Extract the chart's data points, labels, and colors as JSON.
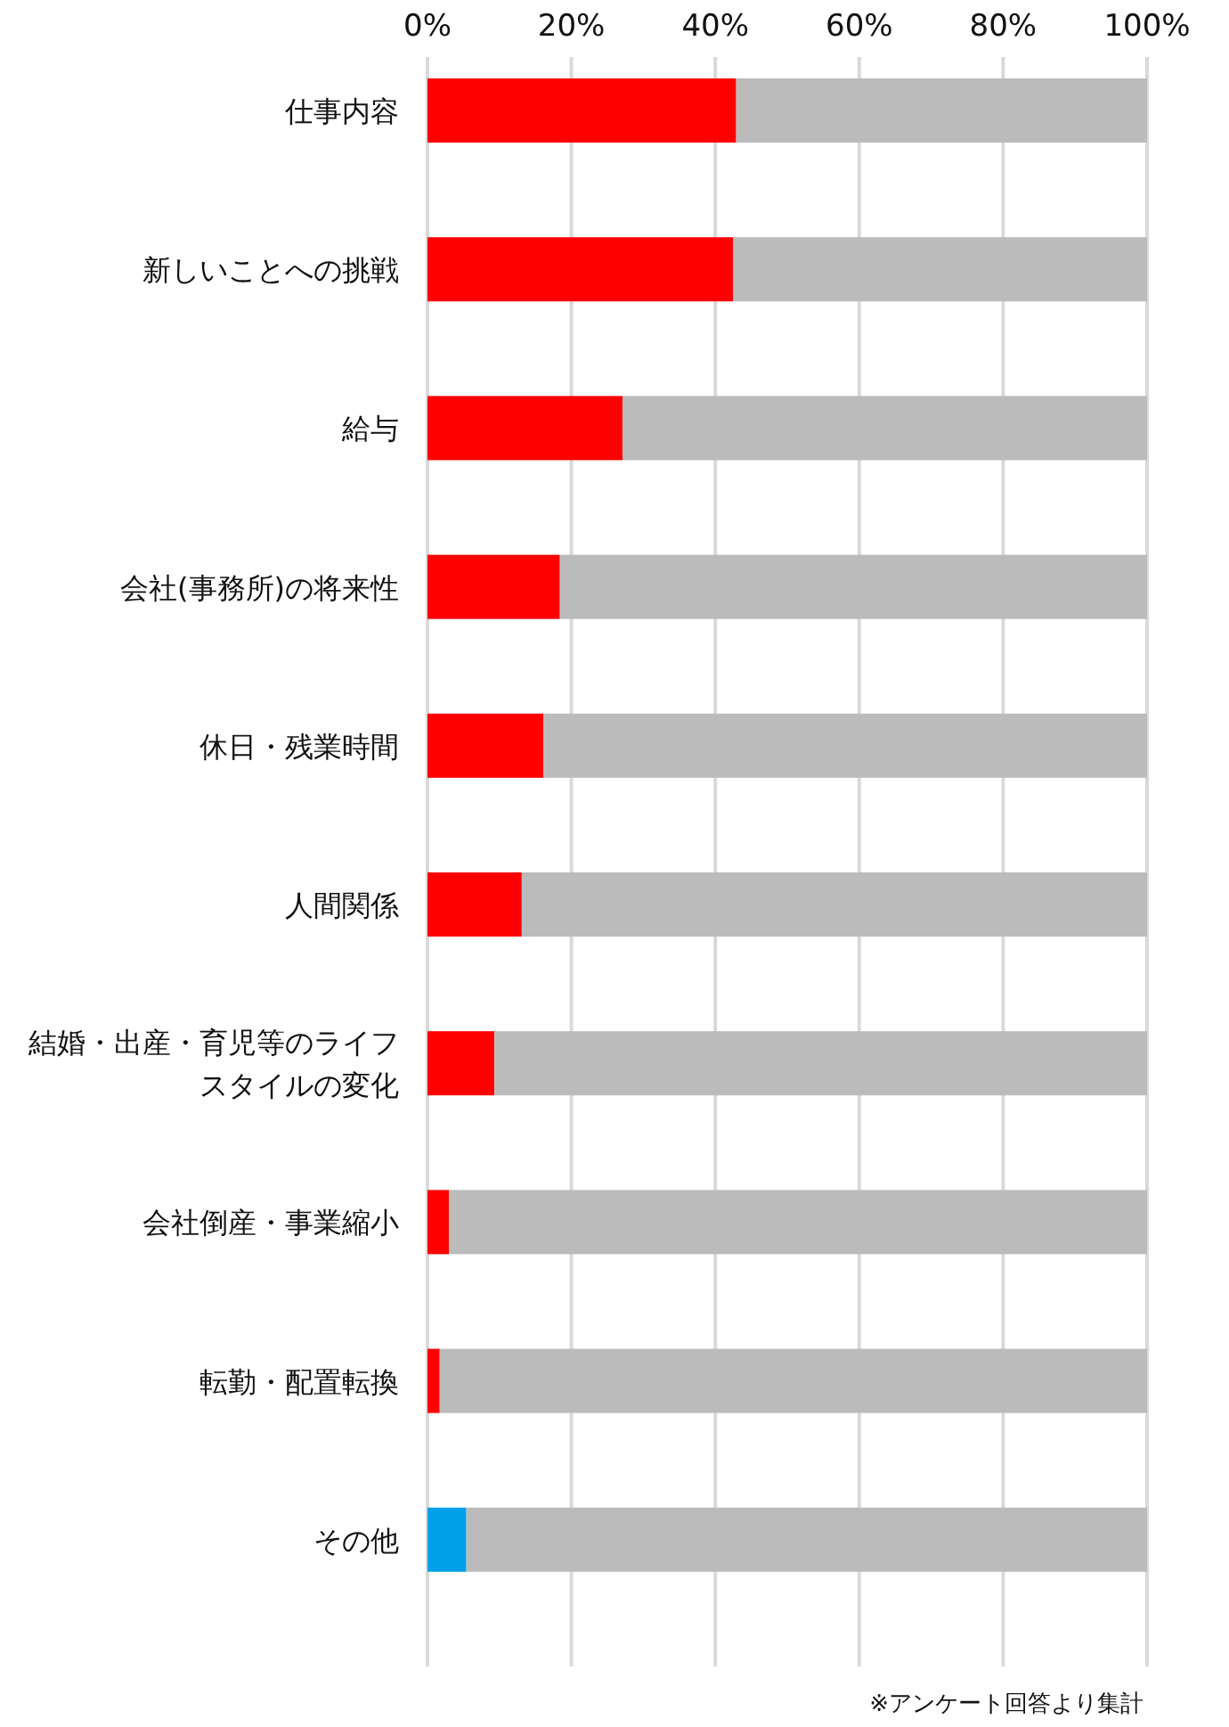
{
  "chart_data": {
    "type": "bar",
    "orientation": "horizontal",
    "stacked": true,
    "grid": "x",
    "categories": [
      "仕事内容",
      "新しいことへの挑戦",
      "給与",
      "会社(事務所)の将来性",
      "休日・残業時間",
      "人間関係",
      "結婚・出産・育児等のライフスタイルの変化",
      "会社倒産・事業縮小",
      "転勤・配置転換",
      "その他"
    ],
    "series": [
      {
        "colors": [
          "#ff0000",
          "#ff0000",
          "#ff0000",
          "#ff0000",
          "#ff0000",
          "#ff0000",
          "#ff0000",
          "#ff0000",
          "#ff0000",
          "#00a0e9"
        ],
        "values": [
          42.9,
          42.5,
          27.1,
          18.4,
          16.1,
          13.1,
          9.3,
          3.0,
          1.7,
          5.4
        ]
      },
      {
        "color": "#bbbbbb",
        "values": [
          57.1,
          57.5,
          72.9,
          81.6,
          83.9,
          86.9,
          90.7,
          97.0,
          98.3,
          94.6
        ]
      }
    ],
    "xlim": [
      0,
      100
    ],
    "xticks": [
      {
        "value": 0,
        "label": "0%"
      },
      {
        "value": 20,
        "label": "20%"
      },
      {
        "value": 40,
        "label": "40%"
      },
      {
        "value": 60,
        "label": "60%"
      },
      {
        "value": 80,
        "label": "80%"
      },
      {
        "value": 100,
        "label": "100%"
      }
    ],
    "annotations": [
      "※アンケート回答より集計"
    ]
  }
}
